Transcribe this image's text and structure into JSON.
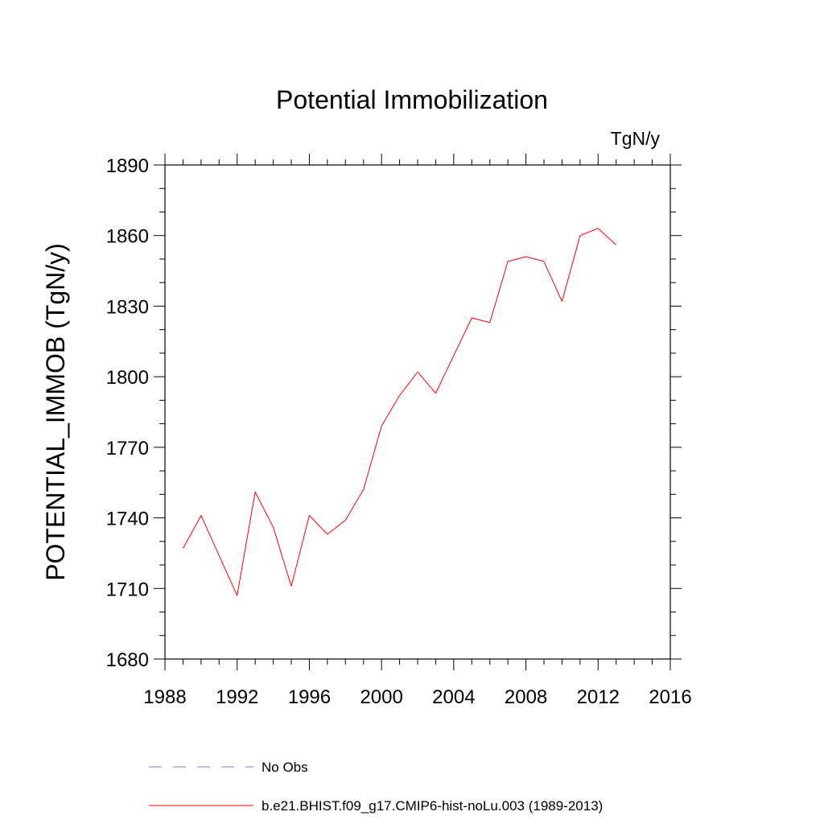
{
  "chart_data": {
    "type": "line",
    "title": "Potential Immobilization",
    "units_label": "TgN/y",
    "xlabel": "",
    "ylabel": "POTENTIAL_IMMOB  (TgN/y)",
    "xlim": [
      1988,
      2016
    ],
    "ylim": [
      1680,
      1890
    ],
    "xticks": [
      1988,
      1992,
      1996,
      2000,
      2004,
      2008,
      2012,
      2016
    ],
    "xtick_labels": [
      "1988",
      "1992",
      "1996",
      "2000",
      "2004",
      "2008",
      "2012",
      "2016"
    ],
    "yticks": [
      1680,
      1710,
      1740,
      1770,
      1800,
      1830,
      1860,
      1890
    ],
    "ytick_labels": [
      "1680",
      "1710",
      "1740",
      "1770",
      "1800",
      "1830",
      "1860",
      "1890"
    ],
    "x_minor_step": 1,
    "y_minor_step": 10,
    "grid": false,
    "legend_position": "bottom",
    "series": [
      {
        "name": "b.e21.BHIST.f09_g17.CMIP6-hist-noLu.003 (1989-2013)",
        "color": "#ff0000",
        "style": "solid",
        "x": [
          1989,
          1990,
          1991,
          1992,
          1993,
          1994,
          1995,
          1996,
          1997,
          1998,
          1999,
          2000,
          2001,
          2002,
          2003,
          2004,
          2005,
          2006,
          2007,
          2008,
          2009,
          2010,
          2011,
          2012,
          2013
        ],
        "values": [
          1727,
          1741,
          1724,
          1707,
          1751,
          1736,
          1711,
          1741,
          1733,
          1739,
          1752,
          1779,
          1792,
          1802,
          1793,
          1809,
          1825,
          1823,
          1849,
          1851,
          1849,
          1832,
          1860,
          1863,
          1856
        ]
      }
    ],
    "legend": [
      {
        "label": "No Obs",
        "color": "#7777cc",
        "style": "dashed"
      },
      {
        "label": "b.e21.BHIST.f09_g17.CMIP6-hist-noLu.003 (1989-2013)",
        "color": "#ff0000",
        "style": "solid"
      }
    ]
  }
}
